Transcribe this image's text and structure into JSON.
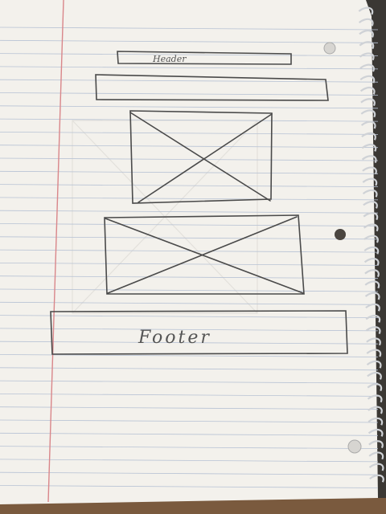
{
  "paper": {
    "background": "#f3f1ec",
    "rule_color": "#b7c2d4",
    "margin_color": "#d9868a",
    "ink_color": "#4a4a4a",
    "binding": "spiral"
  },
  "wireframe": {
    "header_label": "Header",
    "footer_label": "Footer",
    "elements": [
      "header-bar",
      "nav-bar",
      "image-placeholder",
      "image-placeholder",
      "footer-box"
    ]
  }
}
